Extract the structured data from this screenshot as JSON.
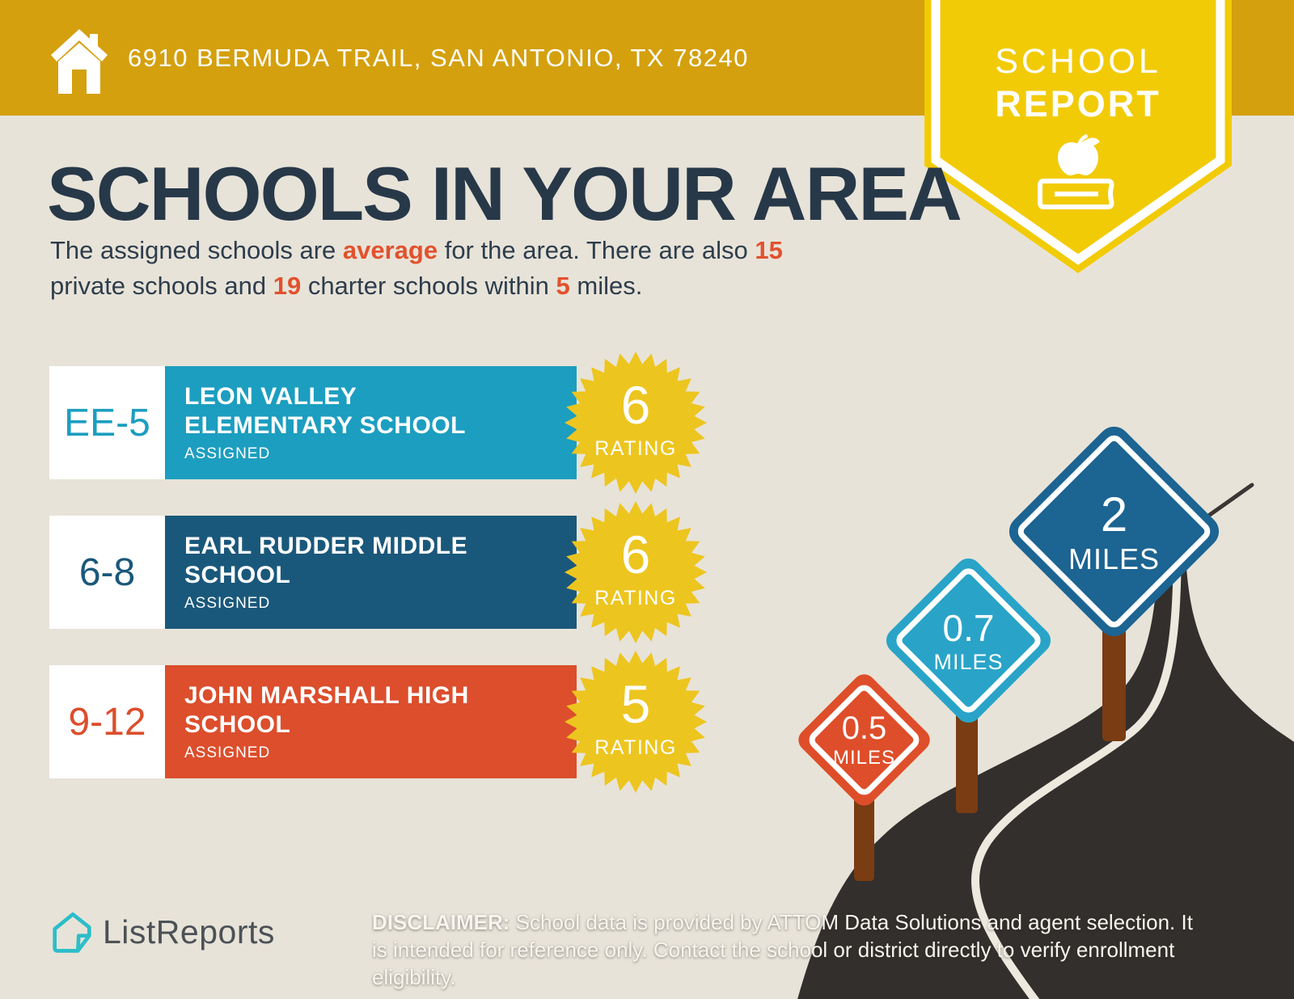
{
  "header": {
    "address": "6910 BERMUDA TRAIL, SAN ANTONIO, TX 78240"
  },
  "report_badge": {
    "line1": "SCHOOL",
    "line2": "REPORT"
  },
  "title": "SCHOOLS IN YOUR AREA",
  "intro": {
    "seg1": "The assigned schools are ",
    "hl1": "average",
    "seg2": " for the area. There are also ",
    "hl2": "15",
    "seg3": "private schools and ",
    "hl3": "19",
    "seg4": " charter schools within ",
    "hl4": "5",
    "seg5": " miles."
  },
  "schools": [
    {
      "grades": "EE-5",
      "name_line1": "LEON VALLEY",
      "name_line2": "ELEMENTARY SCHOOL",
      "status": "ASSIGNED",
      "rating": "6",
      "rating_label": "RATING",
      "color": "#1C9EC0"
    },
    {
      "grades": "6-8",
      "name_line1": "EARL RUDDER MIDDLE",
      "name_line2": "SCHOOL",
      "status": "ASSIGNED",
      "rating": "6",
      "rating_label": "RATING",
      "color": "#1A587B"
    },
    {
      "grades": "9-12",
      "name_line1": "JOHN MARSHALL HIGH",
      "name_line2": "SCHOOL",
      "status": "ASSIGNED",
      "rating": "5",
      "rating_label": "RATING",
      "color": "#DC4E2C"
    }
  ],
  "distance_signs": [
    {
      "value": "0.5",
      "unit": "MILES",
      "color": "#DE4E2A"
    },
    {
      "value": "0.7",
      "unit": "MILES",
      "color": "#29A4C8"
    },
    {
      "value": "2",
      "unit": "MILES",
      "color": "#1C6492"
    }
  ],
  "footer": {
    "brand": "ListReports",
    "disclaimer_label": "DISCLAIMER:",
    "disclaimer_text": " School data is provided by ATTOM Data Solutions and agent selection. It is intended for reference only. Contact the school or district directly to verify enrollment eligibility."
  },
  "colors": {
    "background": "#E8E3D8",
    "header_gold": "#D4A00E",
    "pennant_yellow": "#F2CB07",
    "starburst_yellow": "#EDC51F",
    "title_navy": "#273849",
    "accent_orange": "#E2512D",
    "road_dark": "#332F2D",
    "post_brown": "#7A3C12",
    "logo_teal": "#2BBEC9"
  }
}
